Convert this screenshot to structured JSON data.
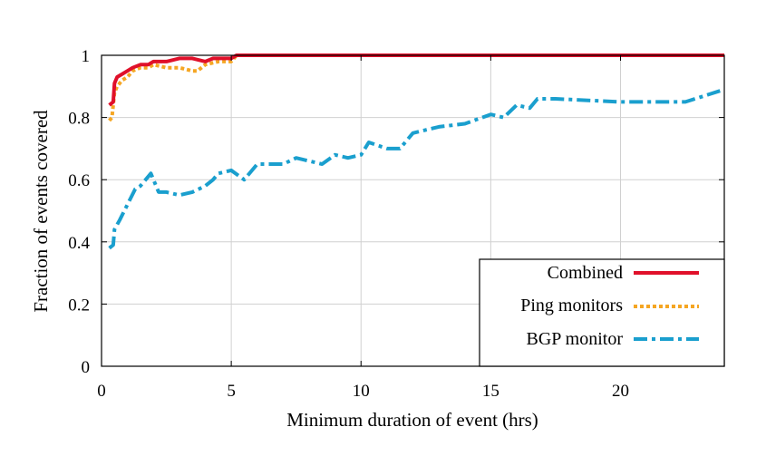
{
  "chart_data": {
    "type": "line",
    "xlabel": "Minimum duration of event (hrs)",
    "ylabel": "Fraction of events covered",
    "xlim": [
      0,
      24
    ],
    "ylim": [
      0,
      1
    ],
    "xticks": [
      0,
      5,
      10,
      15,
      20
    ],
    "yticks": [
      0,
      0.2,
      0.4,
      0.6,
      0.8,
      1
    ],
    "ytick_labels": [
      "0",
      "0.2",
      "0.4",
      "0.6",
      "0.8",
      "1"
    ],
    "grid": true,
    "legend_position": "bottom-right",
    "series": [
      {
        "name": "Combined",
        "color": "#e0102a",
        "style": "solid",
        "x": [
          0.3,
          0.45,
          0.5,
          0.6,
          0.8,
          1.0,
          1.2,
          1.5,
          1.8,
          2.0,
          2.5,
          3.0,
          3.5,
          4.0,
          4.3,
          4.6,
          5.0,
          5.2,
          10,
          15,
          20,
          24
        ],
        "y": [
          0.84,
          0.85,
          0.91,
          0.93,
          0.94,
          0.95,
          0.96,
          0.97,
          0.97,
          0.98,
          0.98,
          0.99,
          0.99,
          0.98,
          0.99,
          0.99,
          0.99,
          1.0,
          1.0,
          1.0,
          1.0,
          1.0
        ]
      },
      {
        "name": "Ping monitors",
        "color": "#f5a623",
        "style": "dotted",
        "x": [
          0.3,
          0.4,
          0.5,
          0.6,
          0.8,
          1.0,
          1.2,
          1.5,
          1.8,
          2.0,
          2.5,
          3.0,
          3.5,
          3.7,
          4.0,
          4.5,
          5.0,
          5.2,
          10,
          15,
          20,
          24
        ],
        "y": [
          0.79,
          0.8,
          0.88,
          0.9,
          0.92,
          0.93,
          0.95,
          0.96,
          0.96,
          0.97,
          0.96,
          0.96,
          0.95,
          0.95,
          0.97,
          0.98,
          0.98,
          1.0,
          1.0,
          1.0,
          1.0,
          1.0
        ]
      },
      {
        "name": "BGP monitor",
        "color": "#1a9fce",
        "style": "dash-dot",
        "x": [
          0.3,
          0.45,
          0.5,
          0.7,
          1.0,
          1.3,
          1.5,
          1.8,
          1.9,
          2.0,
          2.2,
          2.5,
          3.0,
          3.5,
          4.0,
          4.3,
          4.5,
          5.0,
          5.5,
          6.0,
          6.5,
          7.0,
          7.5,
          8.0,
          8.5,
          9.0,
          9.5,
          10.0,
          10.3,
          11.0,
          11.5,
          12.0,
          12.5,
          13.0,
          14.0,
          15.0,
          15.5,
          16.0,
          16.5,
          16.8,
          17.5,
          20.0,
          22.0,
          22.5,
          24.0
        ],
        "y": [
          0.38,
          0.39,
          0.44,
          0.47,
          0.52,
          0.57,
          0.58,
          0.61,
          0.62,
          0.6,
          0.56,
          0.56,
          0.55,
          0.56,
          0.58,
          0.6,
          0.62,
          0.63,
          0.6,
          0.65,
          0.65,
          0.65,
          0.67,
          0.66,
          0.65,
          0.68,
          0.67,
          0.68,
          0.72,
          0.7,
          0.7,
          0.75,
          0.76,
          0.77,
          0.78,
          0.81,
          0.8,
          0.84,
          0.83,
          0.86,
          0.86,
          0.85,
          0.85,
          0.85,
          0.89
        ]
      }
    ]
  }
}
